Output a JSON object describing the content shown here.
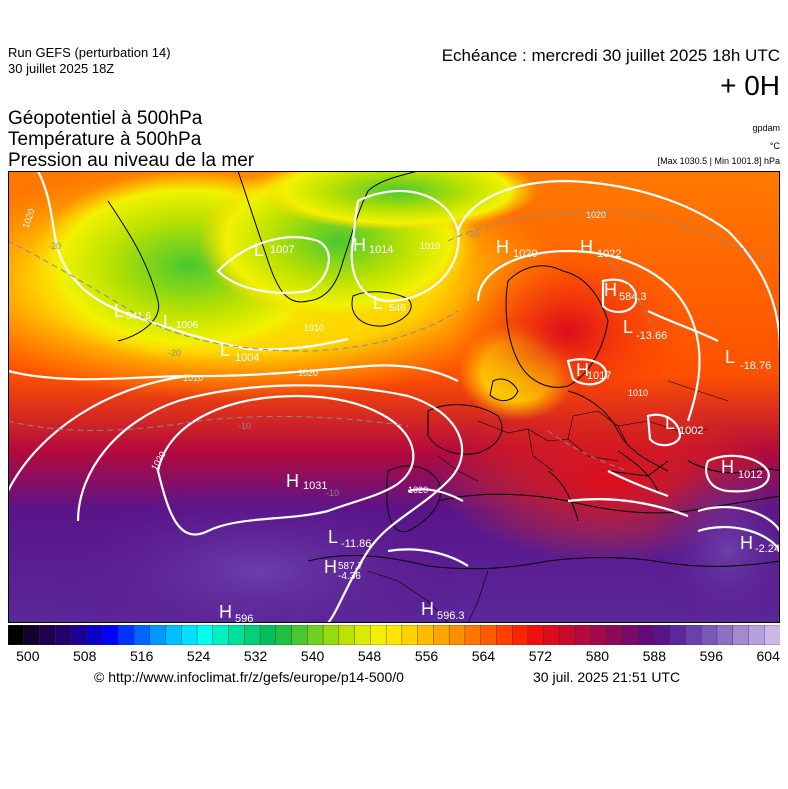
{
  "header": {
    "run_line1": "Run GEFS (perturbation 14)",
    "run_line2": "30 juillet 2025 18Z",
    "echeance": "Echéance : mercredi 30 juillet 2025 18h UTC",
    "lead": "+ 0H"
  },
  "parameters": {
    "line1": "Géopotentiel à 500hPa",
    "line2": "Température à 500hPa",
    "line3": "Pression au niveau de la mer"
  },
  "units": {
    "geopotential": "gpdam",
    "temperature": "°C",
    "extrema": "[Max 1030.5 | Min 1001.8] hPa"
  },
  "map": {
    "pressure_centers": [
      {
        "type": "H",
        "value": "1031"
      },
      {
        "type": "H",
        "value": "1020"
      },
      {
        "type": "H",
        "value": "1022"
      },
      {
        "type": "H",
        "value": "1012"
      },
      {
        "type": "H",
        "value": "1017"
      },
      {
        "type": "H",
        "value": "1014"
      },
      {
        "type": "L",
        "value": "1004"
      },
      {
        "type": "L",
        "value": "1002"
      },
      {
        "type": "L",
        "value": "1007"
      },
      {
        "type": "L",
        "value": "1006"
      }
    ],
    "geopotential_centers": [
      {
        "type": "H",
        "value": "596"
      },
      {
        "type": "H",
        "value": "596.3"
      },
      {
        "type": "H",
        "value": "587.7"
      },
      {
        "type": "H",
        "value": "584.3"
      },
      {
        "type": "L",
        "value": "541.6"
      },
      {
        "type": "L",
        "value": "546"
      }
    ],
    "temperature_centers": [
      {
        "type": "L",
        "value": "-13.66"
      },
      {
        "type": "L",
        "value": "-18.76"
      },
      {
        "type": "L",
        "value": "-11.86"
      },
      {
        "type": "H",
        "value": "-4.36"
      },
      {
        "type": "H",
        "value": "-2.24"
      }
    ],
    "isobar_labels": [
      "1020",
      "1010",
      "1020",
      "1010",
      "1020",
      "1010",
      "1020",
      "1010",
      "1020"
    ],
    "isotherm_labels": [
      "-20",
      "-20",
      "-10",
      "-10",
      "-20"
    ]
  },
  "colorbar": {
    "colors": [
      "#000000",
      "#14002f",
      "#1e004d",
      "#25006b",
      "#1a0096",
      "#0a00c8",
      "#0000ff",
      "#0033ff",
      "#0066ff",
      "#0099ff",
      "#00bfff",
      "#00e0ff",
      "#00ffee",
      "#00f0c0",
      "#00e09a",
      "#00d078",
      "#00c05a",
      "#20c040",
      "#4ac830",
      "#70d020",
      "#96da10",
      "#bce200",
      "#dcea00",
      "#f2f200",
      "#ffe600",
      "#ffd200",
      "#ffbc00",
      "#ffa600",
      "#ff8e00",
      "#ff7600",
      "#ff5c00",
      "#ff4000",
      "#ff2400",
      "#f01010",
      "#dc0c1c",
      "#c80a2c",
      "#b40a3c",
      "#a00a4c",
      "#8c0a5a",
      "#780a6a",
      "#640a7a",
      "#5a148a",
      "#5a289a",
      "#6a40aa",
      "#7c58b8",
      "#9070c4",
      "#a488d0",
      "#b8a0dc",
      "#ccb8e6"
    ],
    "ticks": [
      "500",
      "508",
      "516",
      "524",
      "532",
      "540",
      "548",
      "556",
      "564",
      "572",
      "580",
      "588",
      "596",
      "604"
    ]
  },
  "footer": {
    "copyright": "© http://www.infoclimat.fr/z/gefs/europe/p14-500/0",
    "generated": "30 juil. 2025 21:51 UTC"
  }
}
